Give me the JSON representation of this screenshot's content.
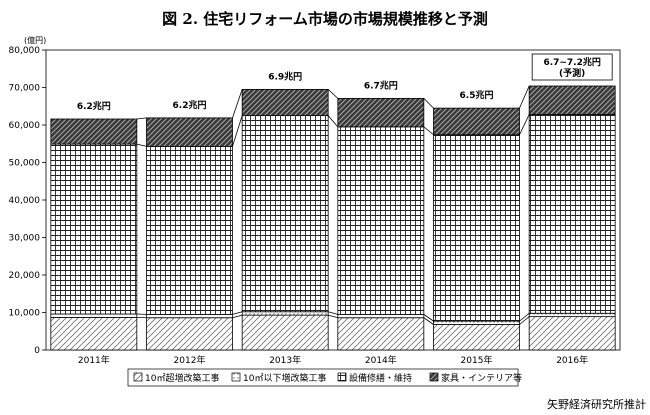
{
  "chart_data": {
    "type": "bar",
    "stacked": true,
    "title": "図 2. 住宅リフォーム市場の市場規模推移と予測",
    "y_unit": "(億円)",
    "ylim": [
      0,
      80000
    ],
    "yticks": [
      "0",
      "10,000",
      "20,000",
      "30,000",
      "40,000",
      "50,000",
      "60,000",
      "70,000",
      "80,000"
    ],
    "categories": [
      "2011年",
      "2012年",
      "2013年",
      "2014年",
      "2015年",
      "2016年"
    ],
    "series": [
      {
        "name": "10㎡超増改築工事",
        "values": [
          8700,
          8600,
          9300,
          8600,
          6800,
          8900
        ]
      },
      {
        "name": "10㎡以下増改築工事",
        "values": [
          900,
          900,
          900,
          900,
          900,
          900
        ]
      },
      {
        "name": "設備修繕・維持",
        "values": [
          45300,
          44800,
          52300,
          50000,
          49700,
          53000
        ]
      },
      {
        "name": "家具・インテリア等",
        "values": [
          6700,
          7600,
          7000,
          7600,
          7100,
          7600
        ]
      }
    ],
    "totals": [
      "6.2兆円",
      "6.2兆円",
      "6.9兆円",
      "6.7兆円",
      "6.5兆円",
      "6.7~7.2兆円"
    ],
    "forecast_note": "(予測)",
    "legend_position": "bottom",
    "grid": false
  },
  "credit": "矢野経済研究所推計"
}
